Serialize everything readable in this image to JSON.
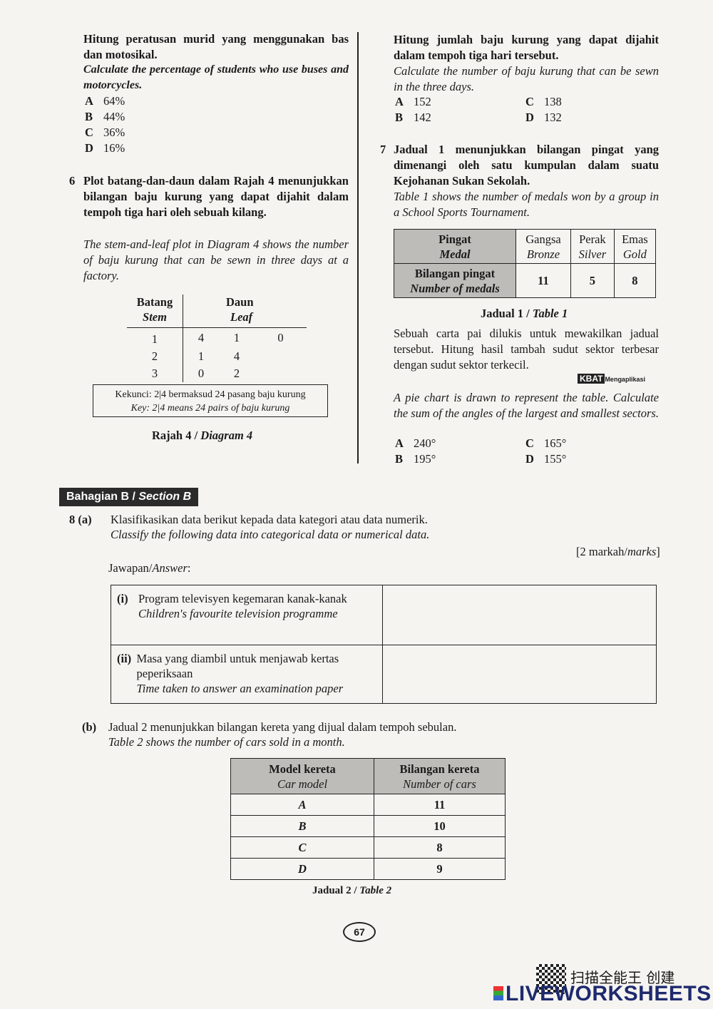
{
  "q5": {
    "ms": "Hitung peratusan murid yang menggunakan bas dan motosikal.",
    "en": "Calculate the percentage of students who use buses and motorcycles.",
    "options": [
      {
        "l": "A",
        "v": "64%"
      },
      {
        "l": "B",
        "v": "44%"
      },
      {
        "l": "C",
        "v": "36%"
      },
      {
        "l": "D",
        "v": "16%"
      }
    ]
  },
  "q6": {
    "num": "6",
    "ms_intro": "Plot batang-dan-daun dalam Rajah 4 menunjukkan bilangan baju kurung yang dapat dijahit dalam tempoh tiga hari oleh sebuah kilang.",
    "en_intro": "The stem-and-leaf plot in Diagram 4 shows the number of baju kurung that can be sewn in three days at a factory.",
    "stem_ms": "Batang",
    "stem_en": "Stem",
    "leaf_ms": "Daun",
    "leaf_en": "Leaf",
    "rows": [
      {
        "stem": "1",
        "leaves": [
          "4",
          "1",
          "0"
        ]
      },
      {
        "stem": "2",
        "leaves": [
          "1",
          "4",
          ""
        ]
      },
      {
        "stem": "3",
        "leaves": [
          "0",
          "2",
          ""
        ]
      }
    ],
    "key_ms": "Kekunci: 2|4 bermaksud 24 pasang baju kurung",
    "key_en": "Key: 2|4 means 24 pairs of baju kurung",
    "caption_ms": "Rajah 4 / ",
    "caption_en": "Diagram 4",
    "ms": "Hitung jumlah baju kurung yang dapat dijahit dalam tempoh tiga hari tersebut.",
    "en": "Calculate the number of baju kurung that can be sewn in the three days.",
    "options": [
      {
        "l": "A",
        "v": "152"
      },
      {
        "l": "B",
        "v": "142"
      },
      {
        "l": "C",
        "v": "138"
      },
      {
        "l": "D",
        "v": "132"
      }
    ]
  },
  "q7": {
    "num": "7",
    "ms_intro": "Jadual 1 menunjukkan bilangan pingat yang dimenangi oleh satu kumpulan dalam suatu Kejohanan Sukan Sekolah.",
    "en_intro": "Table 1 shows the number of medals won by a group in a School Sports Tournament.",
    "table": {
      "h_ms": "Pingat",
      "h_en": "Medal",
      "r_ms": "Bilangan pingat",
      "r_en": "Number of medals",
      "cols": [
        {
          "ms": "Gangsa",
          "en": "Bronze",
          "v": "11"
        },
        {
          "ms": "Perak",
          "en": "Silver",
          "v": "5"
        },
        {
          "ms": "Emas",
          "en": "Gold",
          "v": "8"
        }
      ]
    },
    "caption_ms": "Jadual 1 / ",
    "caption_en": "Table 1",
    "ms": "Sebuah carta pai dilukis untuk mewakilkan jadual tersebut. Hitung hasil tambah sudut sektor terbesar dengan sudut sektor terkecil.",
    "badge": "KBAT",
    "badge_sub": "Mengaplikasi",
    "en": "A pie chart is drawn to represent the table. Calculate the sum of the angles of the largest and smallest sectors.",
    "options": [
      {
        "l": "A",
        "v": "240°"
      },
      {
        "l": "B",
        "v": "195°"
      },
      {
        "l": "C",
        "v": "165°"
      },
      {
        "l": "D",
        "v": "155°"
      }
    ]
  },
  "sectionB": {
    "ms": "Bahagian B / ",
    "en": "Section B"
  },
  "q8": {
    "num": "8",
    "a": "(a)",
    "a_ms": "Klasifikasikan data berikut kepada data kategori atau data numerik.",
    "a_en": "Classify the following data into categorical data or numerical data.",
    "marks_ms": "[2 markah/",
    "marks_en": "marks",
    "marks_end": "]",
    "answer_ms": "Jawapan/",
    "answer_en": "Answer",
    "items": [
      {
        "n": "(i)",
        "ms": "Program televisyen kegemaran kanak-kanak",
        "en": "Children's favourite television programme"
      },
      {
        "n": "(ii)",
        "ms": "Masa yang diambil untuk menjawab kertas peperiksaan",
        "en": "Time taken to answer an examination paper"
      }
    ],
    "b": "(b)",
    "b_ms": "Jadual 2 menunjukkan bilangan kereta yang dijual dalam tempoh sebulan.",
    "b_en": "Table 2 shows the number of cars sold in a month.",
    "t2": {
      "h1_ms": "Model kereta",
      "h1_en": "Car model",
      "h2_ms": "Bilangan kereta",
      "h2_en": "Number of cars",
      "rows": [
        {
          "m": "A",
          "n": "11"
        },
        {
          "m": "B",
          "n": "10"
        },
        {
          "m": "C",
          "n": "8"
        },
        {
          "m": "D",
          "n": "9"
        }
      ]
    },
    "caption_ms": "Jadual 2 / ",
    "caption_en": "Table 2"
  },
  "page_number": "67",
  "watermark": {
    "cn": "扫描全能王 创建",
    "brand": "LIVEWORKSHEETS"
  }
}
